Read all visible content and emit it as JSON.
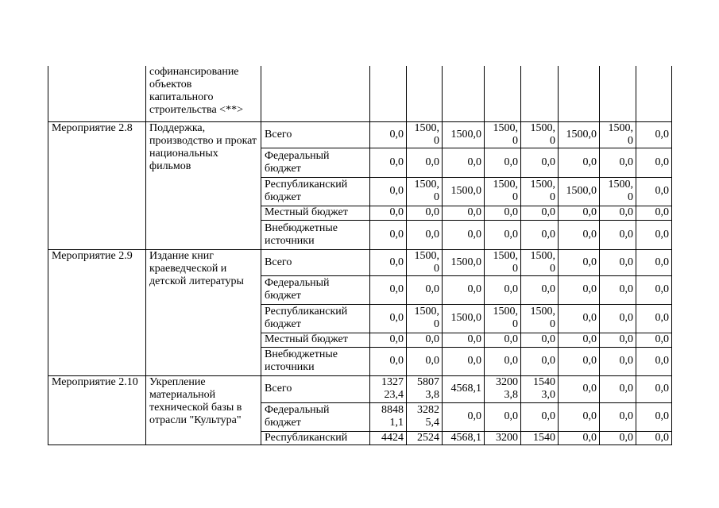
{
  "top_row": {
    "description": "софинансирование объектов капитального строительства <**>"
  },
  "measures": [
    {
      "name": "Мероприятие 2.8",
      "description": "Поддержка, производство и прокат национальных фильмов",
      "rows": [
        {
          "source": "Всего",
          "values": [
            "0,0",
            "1500,0",
            "1500,0",
            "1500,0",
            "1500,0",
            "1500,0",
            "1500,0",
            "0,0"
          ]
        },
        {
          "source": "Федеральный бюджет",
          "values": [
            "0,0",
            "0,0",
            "0,0",
            "0,0",
            "0,0",
            "0,0",
            "0,0",
            "0,0"
          ]
        },
        {
          "source": "Республиканский бюджет",
          "values": [
            "0,0",
            "1500,0",
            "1500,0",
            "1500,0",
            "1500,0",
            "1500,0",
            "1500,0",
            "0,0"
          ]
        },
        {
          "source": "Местный бюджет",
          "values": [
            "0,0",
            "0,0",
            "0,0",
            "0,0",
            "0,0",
            "0,0",
            "0,0",
            "0,0"
          ]
        },
        {
          "source": "Внебюджетные источники",
          "values": [
            "0,0",
            "0,0",
            "0,0",
            "0,0",
            "0,0",
            "0,0",
            "0,0",
            "0,0"
          ]
        }
      ]
    },
    {
      "name": "Мероприятие 2.9",
      "description": "Издание книг краеведческой и детской литературы",
      "rows": [
        {
          "source": "Всего",
          "values": [
            "0,0",
            "1500,0",
            "1500,0",
            "1500,0",
            "1500,0",
            "0,0",
            "0,0",
            "0,0"
          ]
        },
        {
          "source": "Федеральный бюджет",
          "values": [
            "0,0",
            "0,0",
            "0,0",
            "0,0",
            "0,0",
            "0,0",
            "0,0",
            "0,0"
          ]
        },
        {
          "source": "Республиканский бюджет",
          "values": [
            "0,0",
            "1500,0",
            "1500,0",
            "1500,0",
            "1500,0",
            "0,0",
            "0,0",
            "0,0"
          ]
        },
        {
          "source": "Местный бюджет",
          "values": [
            "0,0",
            "0,0",
            "0,0",
            "0,0",
            "0,0",
            "0,0",
            "0,0",
            "0,0"
          ]
        },
        {
          "source": "Внебюджетные источники",
          "values": [
            "0,0",
            "0,0",
            "0,0",
            "0,0",
            "0,0",
            "0,0",
            "0,0",
            "0,0"
          ]
        }
      ]
    },
    {
      "name": "Мероприятие 2.10",
      "description": "Укрепление материальной технической базы в отрасли \"Культура\"",
      "rows": [
        {
          "source": "Всего",
          "values": [
            "132723,4",
            "58073,8",
            "4568,1",
            "32003,8",
            "15403,0",
            "0,0",
            "0,0",
            "0,0"
          ]
        },
        {
          "source": "Федеральный бюджет",
          "values": [
            "88481,1",
            "32825,4",
            "0,0",
            "0,0",
            "0,0",
            "0,0",
            "0,0",
            "0,0"
          ]
        },
        {
          "source": "Республиканский",
          "values": [
            "4424",
            "2524",
            "4568,1",
            "3200",
            "1540",
            "0,0",
            "0,0",
            "0,0"
          ]
        }
      ]
    }
  ]
}
